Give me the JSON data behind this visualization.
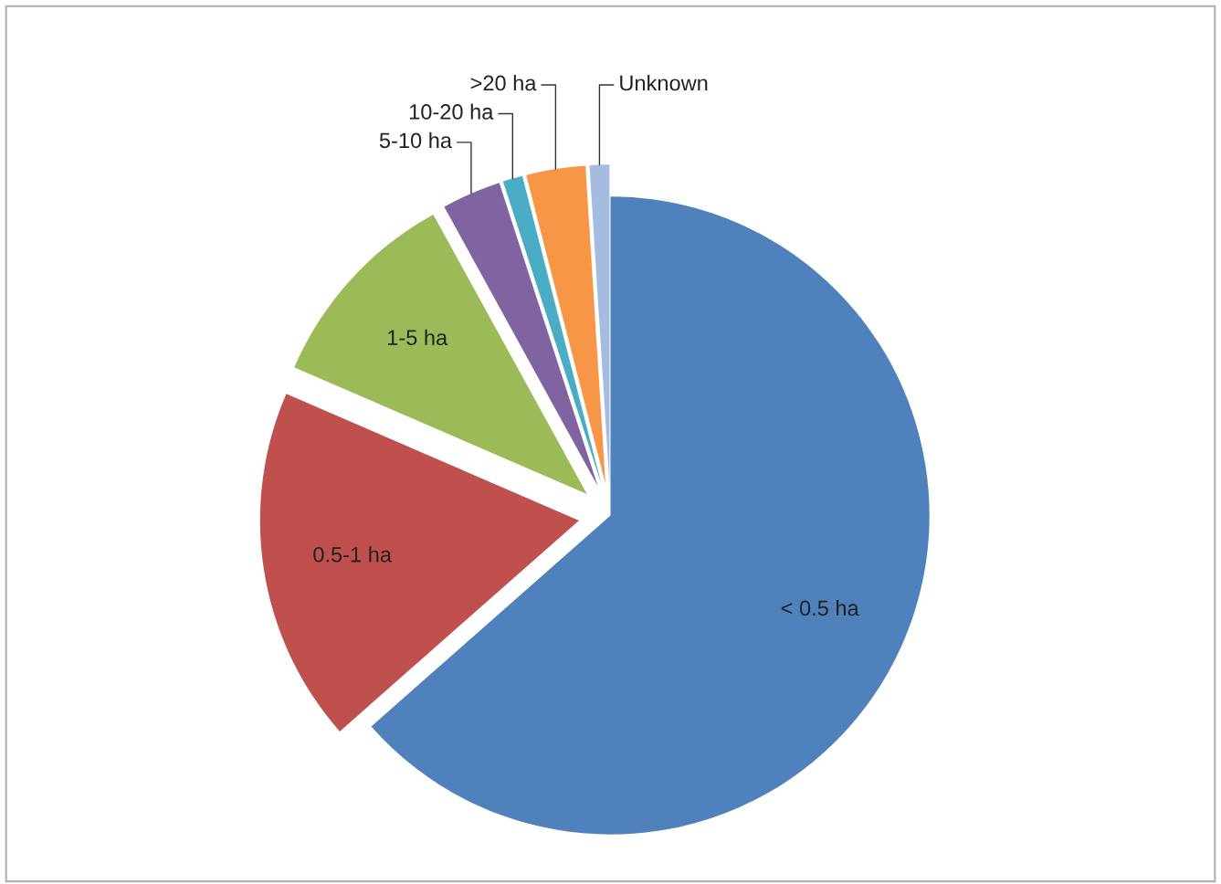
{
  "chart_data": {
    "type": "pie",
    "categories": [
      "< 0.5 ha",
      "0.5-1 ha",
      "1-5 ha",
      "5-10 ha",
      "10-20 ha",
      ">20 ha",
      "Unknown"
    ],
    "values": [
      63.5,
      18,
      10.5,
      3,
      1,
      3,
      1
    ],
    "colors": [
      "#4f81bd",
      "#c0504d",
      "#9bbb59",
      "#8064a2",
      "#4bacc6",
      "#f79646",
      "#a5bbdf"
    ],
    "legend": false
  }
}
